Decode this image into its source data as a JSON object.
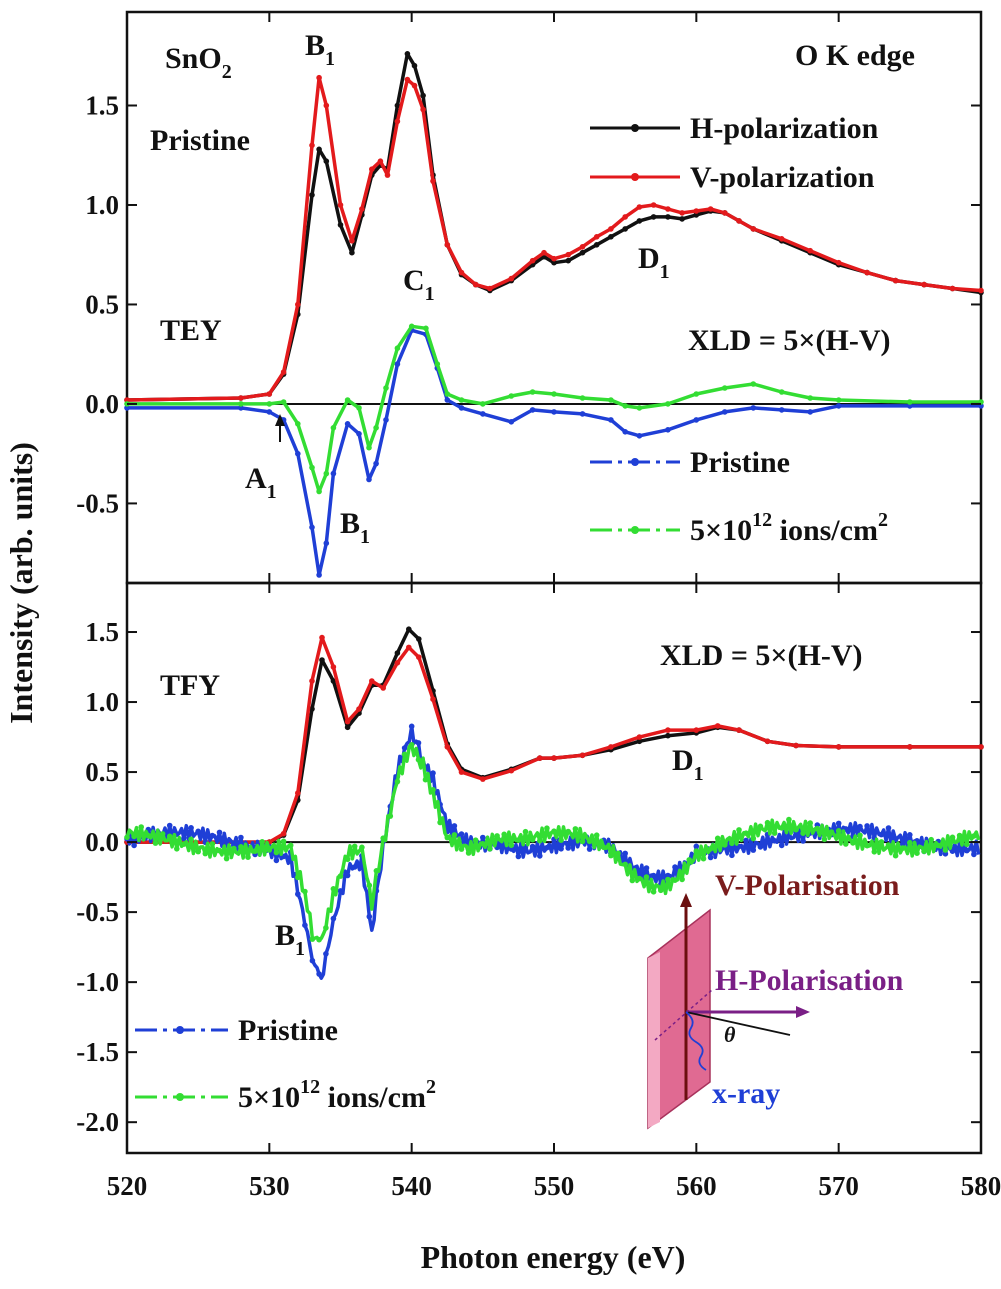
{
  "chart_data": [
    {
      "type": "line",
      "panel": "TEY",
      "x_range": [
        520,
        580
      ],
      "ylim": [
        -0.9,
        1.97
      ],
      "yticks": [
        "-0.5",
        "0.0",
        "0.5",
        "1.0",
        "1.5"
      ],
      "ytick_values": [
        -0.5,
        0.0,
        0.5,
        1.0,
        1.5
      ],
      "annotations": {
        "material": "SnO",
        "material_sub": "2",
        "state": "Pristine",
        "mode": "TEY",
        "edge": "O K  edge",
        "xld_formula": "XLD = 5×(H-V)",
        "peak_B1_top": "B",
        "peak_B1_top_sub": "1",
        "peak_C1": "C",
        "peak_C1_sub": "1",
        "peak_D1": "D",
        "peak_D1_sub": "1",
        "peak_A1": "A",
        "peak_A1_sub": "1",
        "peak_B1_bottom": "B",
        "peak_B1_bottom_sub": "1"
      },
      "legend_spectra": [
        "H-polarization",
        "V-polarization"
      ],
      "legend_xld": {
        "pristine": "Pristine",
        "irradiated": "5×10",
        "irradiated_exp": "12",
        "irradiated_tail": " ions/cm",
        "irradiated_tail_exp": "2"
      },
      "series": [
        {
          "name": "H-polarization",
          "color": "#111111",
          "x": [
            520,
            528,
            530,
            531,
            532,
            533,
            533.5,
            534,
            535,
            535.8,
            536.5,
            537.2,
            537.8,
            538.3,
            539,
            539.7,
            540.2,
            540.8,
            541.5,
            542.5,
            543.5,
            544.5,
            545.5,
            547,
            548.5,
            549.3,
            550,
            551,
            552,
            553,
            554,
            555,
            556,
            557,
            558,
            559,
            560,
            561,
            562,
            563,
            564,
            566,
            568,
            570,
            572,
            574,
            576,
            578,
            580
          ],
          "y": [
            0.02,
            0.03,
            0.05,
            0.15,
            0.45,
            1.05,
            1.28,
            1.22,
            0.9,
            0.76,
            0.95,
            1.15,
            1.2,
            1.18,
            1.5,
            1.76,
            1.7,
            1.55,
            1.15,
            0.8,
            0.65,
            0.6,
            0.57,
            0.62,
            0.7,
            0.74,
            0.71,
            0.72,
            0.76,
            0.8,
            0.84,
            0.88,
            0.92,
            0.94,
            0.94,
            0.93,
            0.95,
            0.97,
            0.96,
            0.92,
            0.88,
            0.82,
            0.76,
            0.7,
            0.66,
            0.62,
            0.6,
            0.58,
            0.56
          ]
        },
        {
          "name": "V-polarization",
          "color": "#e31a1c",
          "x": [
            520,
            528,
            530,
            531,
            532,
            533,
            533.5,
            534,
            535,
            535.8,
            536.5,
            537.2,
            537.8,
            538.3,
            539,
            539.7,
            540.2,
            540.8,
            541.5,
            542.5,
            543.5,
            544.5,
            545.5,
            547,
            548.5,
            549.3,
            550,
            551,
            552,
            553,
            554,
            555,
            556,
            557,
            558,
            559,
            560,
            561,
            562,
            563,
            564,
            566,
            568,
            570,
            572,
            574,
            576,
            578,
            580
          ],
          "y": [
            0.02,
            0.03,
            0.05,
            0.16,
            0.5,
            1.3,
            1.64,
            1.5,
            1.0,
            0.82,
            0.98,
            1.18,
            1.22,
            1.15,
            1.42,
            1.63,
            1.6,
            1.48,
            1.12,
            0.8,
            0.66,
            0.6,
            0.58,
            0.63,
            0.72,
            0.76,
            0.73,
            0.75,
            0.79,
            0.84,
            0.88,
            0.94,
            0.99,
            1.0,
            0.98,
            0.96,
            0.97,
            0.98,
            0.96,
            0.92,
            0.88,
            0.83,
            0.77,
            0.71,
            0.66,
            0.62,
            0.6,
            0.58,
            0.57
          ]
        },
        {
          "name": "Pristine",
          "color": "#1f3fd6",
          "x": [
            520,
            528,
            530,
            531,
            532,
            533,
            533.5,
            534,
            534.5,
            535.5,
            536.3,
            537,
            537.5,
            538.2,
            539,
            540,
            541,
            541.8,
            542.5,
            543.5,
            545,
            547,
            548.5,
            550,
            552,
            554,
            555,
            556,
            558,
            560,
            562,
            564,
            566,
            568,
            570,
            575,
            580
          ],
          "y": [
            -0.02,
            -0.02,
            -0.04,
            -0.08,
            -0.25,
            -0.62,
            -0.86,
            -0.7,
            -0.35,
            -0.1,
            -0.15,
            -0.38,
            -0.3,
            -0.08,
            0.2,
            0.37,
            0.35,
            0.18,
            0.02,
            -0.02,
            -0.05,
            -0.09,
            -0.03,
            -0.04,
            -0.05,
            -0.08,
            -0.14,
            -0.16,
            -0.13,
            -0.08,
            -0.04,
            -0.02,
            -0.03,
            -0.04,
            -0.01,
            -0.01,
            -0.01
          ]
        },
        {
          "name": "5×10^12 ions/cm^2",
          "color": "#33dd33",
          "x": [
            520,
            528,
            530,
            531,
            532,
            533,
            533.5,
            534,
            534.5,
            535.5,
            536.3,
            537,
            537.5,
            538.2,
            539,
            540,
            541,
            541.8,
            542.5,
            543.5,
            545,
            547,
            548.5,
            550,
            552,
            554,
            555,
            556,
            558,
            560,
            562,
            564,
            566,
            568,
            570,
            575,
            580
          ],
          "y": [
            0.0,
            0.0,
            0.0,
            0.01,
            -0.1,
            -0.32,
            -0.44,
            -0.35,
            -0.12,
            0.02,
            -0.02,
            -0.22,
            -0.12,
            0.08,
            0.28,
            0.39,
            0.38,
            0.2,
            0.05,
            0.02,
            0.0,
            0.04,
            0.06,
            0.05,
            0.03,
            0.02,
            -0.01,
            -0.02,
            0.0,
            0.05,
            0.08,
            0.1,
            0.06,
            0.03,
            0.02,
            0.01,
            0.01
          ]
        }
      ]
    },
    {
      "type": "line",
      "panel": "TFY",
      "x_range": [
        520,
        580
      ],
      "ylim": [
        -2.22,
        1.85
      ],
      "yticks": [
        "-2.0",
        "-1.5",
        "-1.0",
        "-0.5",
        "0.0",
        "0.5",
        "1.0",
        "1.5"
      ],
      "ytick_values": [
        -2.0,
        -1.5,
        -1.0,
        -0.5,
        0.0,
        0.5,
        1.0,
        1.5
      ],
      "xticks": [
        "520",
        "530",
        "540",
        "550",
        "560",
        "570",
        "580"
      ],
      "xtick_values": [
        520,
        530,
        540,
        550,
        560,
        570,
        580
      ],
      "xlabel": "Photon energy (eV)",
      "ylabel": "Intensity (arb. units)",
      "annotations": {
        "mode": "TFY",
        "xld_formula": "XLD = 5×(H-V)",
        "peak_D1": "D",
        "peak_D1_sub": "1",
        "peak_B1": "B",
        "peak_B1_sub": "1",
        "inset_v": "V-Polarisation",
        "inset_h": "H-Polarisation",
        "inset_xray": "x-ray",
        "inset_theta": "θ"
      },
      "legend_xld": {
        "pristine": "Pristine",
        "irradiated": "5×10",
        "irradiated_exp": "12",
        "irradiated_tail": " ions/cm",
        "irradiated_tail_exp": "2"
      },
      "series": [
        {
          "name": "H-polarization",
          "color": "#111111",
          "x": [
            520,
            530,
            531,
            532,
            533,
            533.7,
            534.5,
            535.5,
            536.3,
            537.2,
            538,
            539,
            539.8,
            540.5,
            541.5,
            542.5,
            543.5,
            545,
            547,
            549,
            550,
            552,
            554,
            556,
            558,
            560,
            561.5,
            563,
            565,
            567,
            570,
            575,
            580
          ],
          "y": [
            0.0,
            0.0,
            0.05,
            0.3,
            0.95,
            1.3,
            1.15,
            0.82,
            0.92,
            1.12,
            1.12,
            1.35,
            1.52,
            1.45,
            1.08,
            0.7,
            0.52,
            0.46,
            0.52,
            0.6,
            0.6,
            0.62,
            0.66,
            0.72,
            0.76,
            0.78,
            0.82,
            0.8,
            0.72,
            0.69,
            0.68,
            0.68,
            0.68
          ]
        },
        {
          "name": "V-polarization",
          "color": "#e31a1c",
          "x": [
            520,
            530,
            531,
            532,
            533,
            533.7,
            534.5,
            535.5,
            536.3,
            537.2,
            538,
            539,
            539.8,
            540.5,
            541.5,
            542.5,
            543.5,
            545,
            547,
            549,
            550,
            552,
            554,
            556,
            558,
            560,
            561.5,
            563,
            565,
            567,
            570,
            575,
            580
          ],
          "y": [
            0.0,
            0.0,
            0.06,
            0.35,
            1.15,
            1.46,
            1.25,
            0.86,
            0.95,
            1.15,
            1.1,
            1.28,
            1.39,
            1.32,
            1.02,
            0.68,
            0.5,
            0.45,
            0.51,
            0.6,
            0.6,
            0.62,
            0.68,
            0.75,
            0.8,
            0.8,
            0.83,
            0.8,
            0.72,
            0.69,
            0.68,
            0.68,
            0.68
          ]
        },
        {
          "name": "Pristine",
          "color": "#1f3fd6",
          "x": [
            520,
            530,
            531.5,
            532.5,
            533.2,
            533.8,
            534.5,
            535.5,
            536.5,
            537.2,
            538,
            539,
            540,
            540.8,
            541.5,
            542.5,
            544,
            546,
            548,
            550,
            552,
            554,
            555,
            556,
            557,
            558,
            559,
            560,
            562,
            565,
            570,
            575,
            580
          ],
          "y": [
            0.0,
            0.0,
            -0.05,
            -0.5,
            -0.85,
            -0.95,
            -0.55,
            -0.2,
            -0.18,
            -0.6,
            -0.1,
            0.45,
            0.72,
            0.6,
            0.4,
            0.1,
            0.02,
            0.05,
            0.0,
            0.0,
            -0.02,
            -0.1,
            -0.2,
            -0.27,
            -0.3,
            -0.28,
            -0.18,
            -0.05,
            0.02,
            0.05,
            0.02,
            0.02,
            0.02
          ]
        },
        {
          "name": "5×10^12 ions/cm^2",
          "color": "#33dd33",
          "x": [
            520,
            530,
            531.5,
            532.5,
            533.2,
            533.8,
            534.5,
            535.5,
            536.5,
            537.2,
            538,
            539,
            540,
            540.8,
            541.5,
            542.5,
            544,
            546,
            548,
            550,
            552,
            554,
            555,
            556,
            557,
            558,
            559,
            560,
            562,
            565,
            570,
            575,
            580
          ],
          "y": [
            0.0,
            0.0,
            -0.04,
            -0.4,
            -0.7,
            -0.72,
            -0.45,
            -0.15,
            -0.12,
            -0.5,
            -0.05,
            0.45,
            0.72,
            0.62,
            0.4,
            0.1,
            0.02,
            0.05,
            0.0,
            0.0,
            -0.02,
            -0.08,
            -0.18,
            -0.24,
            -0.27,
            -0.25,
            -0.15,
            -0.03,
            0.03,
            0.05,
            0.02,
            0.02,
            0.02
          ]
        }
      ]
    }
  ]
}
